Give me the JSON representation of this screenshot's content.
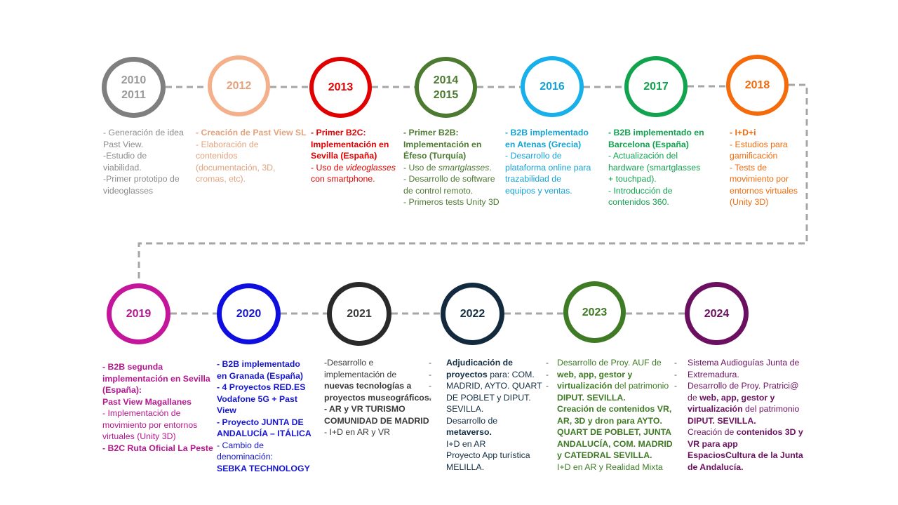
{
  "colors": {
    "connector": "#a6a6a6",
    "m2010": "#7f7f7f",
    "m2012": "#f4b08a",
    "m2013": "#e00000",
    "m2014": "#4c7a31",
    "m2016": "#18b0ea",
    "m2017": "#12a34f",
    "m2018": "#f56a0a",
    "m2019": "#c3169a",
    "m2020": "#0e0ee0",
    "m2021": "#2a2a2a",
    "m2022": "#13293d",
    "m2023": "#3f7a25",
    "m2024": "#6b1060"
  },
  "milestones": [
    {
      "year": [
        "2010",
        "2011"
      ],
      "items": [
        "- Generación de idea",
        "Past View.",
        "-Estudio de",
        "viabilidad.",
        "-Primer prototipo de",
        "videoglasses"
      ]
    },
    {
      "year": [
        "2012"
      ],
      "items": [
        "- Creación de Past View SL",
        "- Elaboración de",
        "contenidos",
        "(documentación, 3D,",
        "cromas, etc)."
      ]
    },
    {
      "year": [
        "2013"
      ],
      "items": [
        "- Primer B2C:",
        "Implementación en",
        "Sevilla (España)",
        "- Uso de ",
        "videoglasses",
        "con smartphone."
      ]
    },
    {
      "year": [
        "2014",
        "2015"
      ],
      "items": [
        "- Primer B2B:",
        "Implementación en",
        "Éfeso (Turquía)",
        "- Uso de ",
        "smartglasses",
        ".",
        "- Desarrollo de software",
        "de control remoto.",
        "- Primeros tests Unity 3D"
      ]
    },
    {
      "year": [
        "2016"
      ],
      "items": [
        "- B2B implementado",
        "en Atenas (Grecia)",
        "- Desarrollo de",
        "plataforma online para",
        "trazabilidad de",
        "equipos y ventas."
      ]
    },
    {
      "year": [
        "2017"
      ],
      "items": [
        "- B2B implementado en",
        "Barcelona (España)",
        "- Actualización del",
        "hardware (smartglasses",
        "+ touchpad).",
        "- Introducción de",
        "contenidos 360."
      ]
    },
    {
      "year": [
        "2018"
      ],
      "items": [
        "- I+D+i",
        "- Estudios para",
        "gamificación",
        "- Tests de",
        "movimiento por",
        "entornos virtuales",
        "(Unity 3D)"
      ]
    },
    {
      "year": [
        "2019"
      ],
      "items": [
        "- B2B segunda",
        "implementación en Sevilla",
        "(España):",
        "Past View Magallanes",
        "- Implementación de",
        "movimiento por entornos",
        "virtuales (Unity 3D)",
        "- B2C Ruta Oficial La Peste"
      ]
    },
    {
      "year": [
        "2020"
      ],
      "items": [
        "- B2B implementado",
        "en Granada (España)",
        "- 4 Proyectos RED.ES",
        "Vodafone 5G + Past",
        "View",
        "- Proyecto JUNTA DE",
        "ANDALUCÍA – ITÁLICA",
        "- Cambio de",
        "denominación:",
        "SEBKA TECHNOLOGY"
      ]
    },
    {
      "year": [
        "2021"
      ],
      "items": [
        "-Desarrollo e",
        "implementación de",
        "nuevas tecnologías a",
        "proyectos museográficos.",
        "- AR y VR TURISMO",
        "COMUNIDAD DE MADRID",
        "- I+D en AR y VR"
      ]
    },
    {
      "year": [
        "2022"
      ],
      "items": [
        "Adjudicación de",
        "proyectos",
        " para: COM.",
        "MADRID, AYTO. QUART",
        "DE POBLET y DIPUT.",
        "SEVILLA.",
        " Desarrollo de",
        "metaverso.",
        "I+D en AR",
        "Proyecto App turística",
        "MELILLA."
      ]
    },
    {
      "year": [
        "2023"
      ],
      "items": [
        "Desarrollo de Proy. AUF de",
        "web, app, gestor y",
        "virtualización",
        " del patrimonio",
        "DIPUT. SEVILLA.",
        "Creación de contenidos VR,",
        "AR, 3D y dron para AYTO.",
        "QUART DE POBLET, JUNTA",
        "ANDALUCÍA, COM. MADRID",
        "y CATEDRAL SEVILLA.",
        "I+D en AR y Realidad Mixta"
      ]
    },
    {
      "year": [
        "2024"
      ],
      "items": [
        "Sistema Audioguías Junta de",
        "Extremadura.",
        "Desarrollo de Proy. Pratrici@",
        "de ",
        "web, app, gestor y",
        "virtualización",
        " del patrimonio",
        "DIPUT. SEVILLA.",
        "Creación de ",
        "contenidos 3D y",
        "VR para app",
        "EspaciosCultura de la Junta",
        "de Andalucía."
      ]
    }
  ],
  "bullets": "-"
}
